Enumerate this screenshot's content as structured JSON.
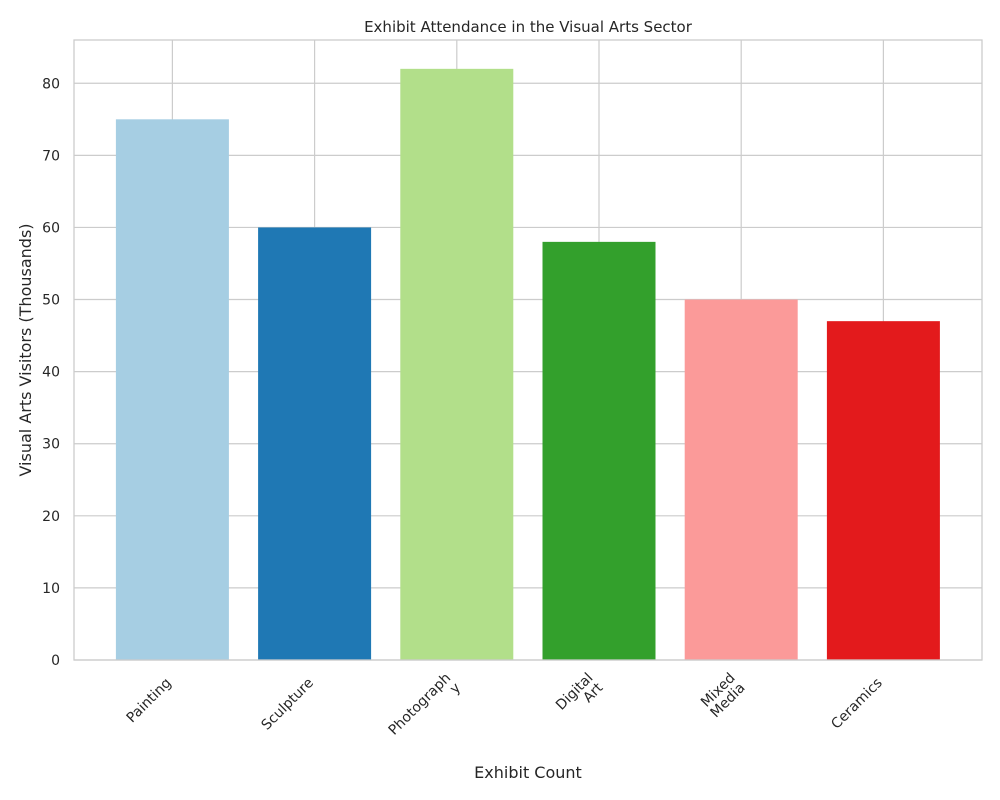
{
  "chart_data": {
    "type": "bar",
    "title": "Exhibit Attendance in the Visual Arts Sector",
    "xlabel": "Exhibit Count",
    "ylabel": "Visual Arts Visitors (Thousands)",
    "categories": [
      "Painting",
      "Sculpture",
      "Photograph\ny",
      "Digital\nArt",
      "Mixed\nMedia",
      "Ceramics"
    ],
    "values": [
      75,
      60,
      82,
      58,
      50,
      47
    ],
    "colors": [
      "#a6cee3",
      "#1f78b4",
      "#b2df8a",
      "#33a02c",
      "#fb9a99",
      "#e31a1c"
    ],
    "ylim": [
      0,
      86
    ],
    "yticks": [
      0,
      10,
      20,
      30,
      40,
      50,
      60,
      70,
      80
    ],
    "grid": true,
    "legend": "none"
  }
}
